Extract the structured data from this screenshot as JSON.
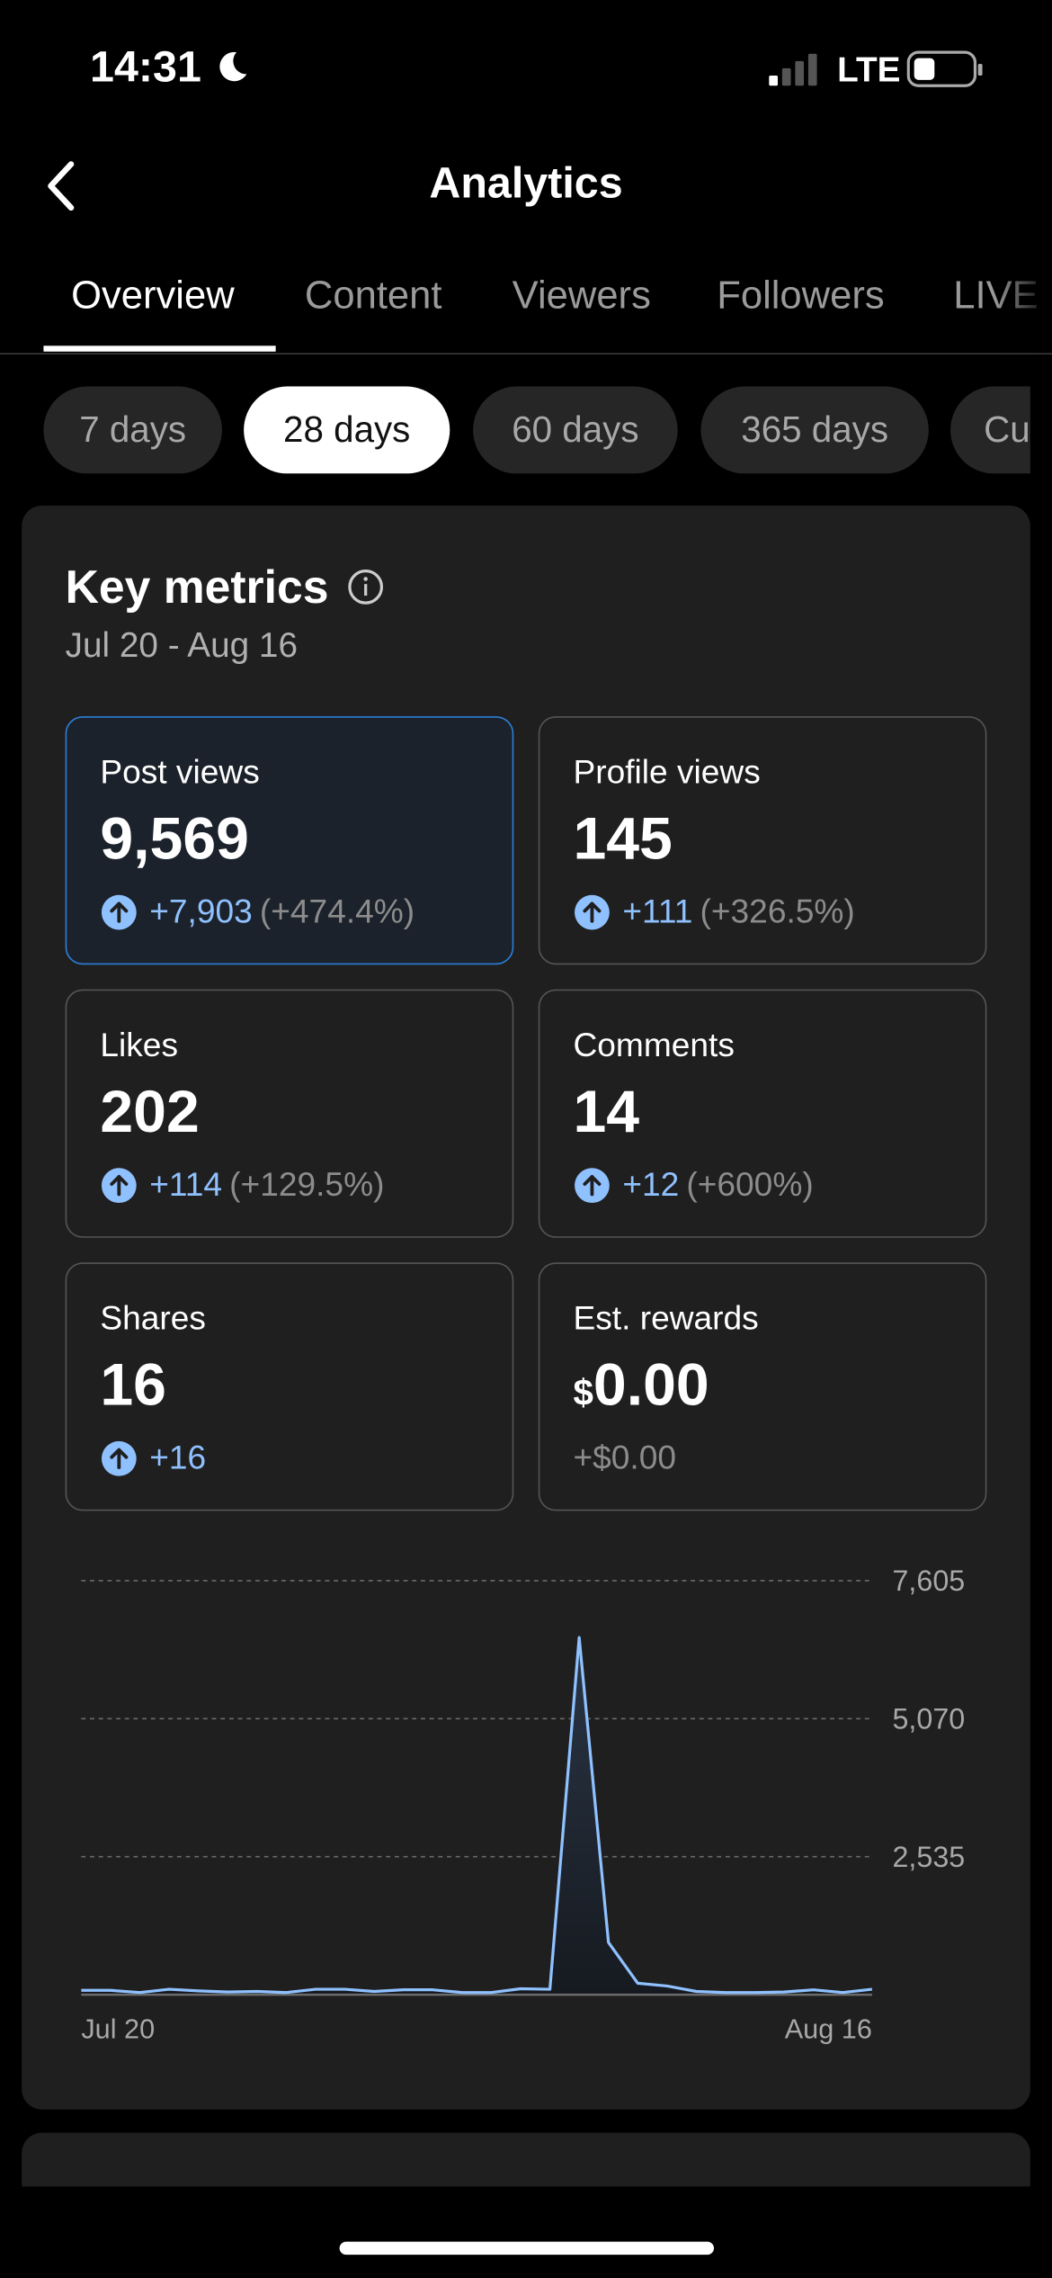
{
  "status_bar": {
    "time": "14:31",
    "network": "LTE"
  },
  "header": {
    "title": "Analytics"
  },
  "tabs": [
    "Overview",
    "Content",
    "Viewers",
    "Followers",
    "LIVE"
  ],
  "periods": [
    "7 days",
    "28 days",
    "60 days",
    "365 days",
    "Cu"
  ],
  "key_metrics": {
    "title": "Key metrics",
    "date_range": "Jul 20 - Aug 16",
    "cards": [
      {
        "label": "Post views",
        "value": "9,569",
        "change": "+7,903",
        "percent": "(+474.4%)"
      },
      {
        "label": "Profile views",
        "value": "145",
        "change": "+111",
        "percent": "(+326.5%)"
      },
      {
        "label": "Likes",
        "value": "202",
        "change": "+114",
        "percent": "(+129.5%)"
      },
      {
        "label": "Comments",
        "value": "14",
        "change": "+12",
        "percent": "(+600%)"
      },
      {
        "label": "Shares",
        "value": "16",
        "change": "+16"
      },
      {
        "label": "Est. rewards",
        "currency": "$",
        "value": "0.00",
        "change": "+$0.00"
      }
    ]
  },
  "chart_data": {
    "type": "line",
    "categories": [
      "Jul 20",
      null,
      null,
      null,
      null,
      null,
      null,
      null,
      null,
      null,
      null,
      null,
      null,
      null,
      null,
      null,
      null,
      null,
      null,
      null,
      null,
      null,
      null,
      null,
      null,
      null,
      null,
      "Aug 16"
    ],
    "values": [
      80,
      80,
      40,
      100,
      70,
      50,
      60,
      40,
      100,
      100,
      60,
      90,
      90,
      40,
      40,
      110,
      100,
      6560,
      960,
      210,
      160,
      60,
      40,
      40,
      50,
      90,
      40,
      100
    ],
    "color": "#8fc1ff",
    "ylim": [
      0,
      7605
    ],
    "yticks": [
      {
        "value": 2535,
        "label": "2,535"
      },
      {
        "value": 5070,
        "label": "5,070"
      },
      {
        "value": 7605,
        "label": "7,605"
      }
    ],
    "grid": true
  }
}
